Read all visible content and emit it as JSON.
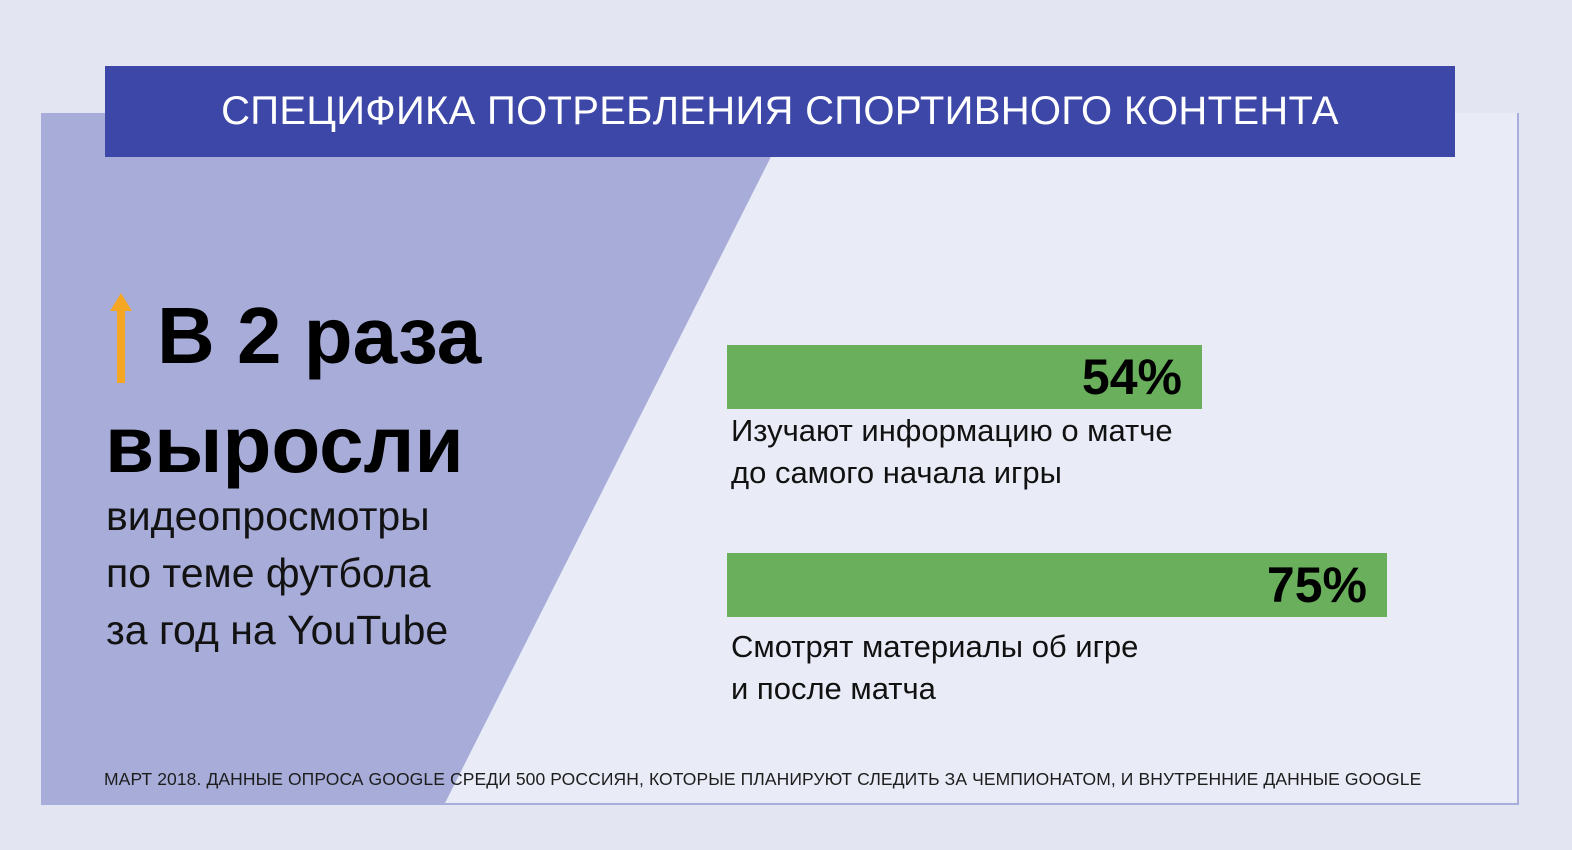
{
  "header": {
    "title": "СПЕЦИФИКА ПОТРЕБЛЕНИЯ СПОРТИВНОГО КОНТЕНТА"
  },
  "highlight": {
    "headline_line1": "В 2 раза",
    "headline_line2": "выросли",
    "body_lines": [
      "видеопросмотры",
      "по теме футбола",
      "за год на YouTube"
    ],
    "arrow_icon": "up-arrow-icon",
    "arrow_color": "#f5a623"
  },
  "chart_data": {
    "type": "bar",
    "orientation": "horizontal",
    "categories": [
      "Изучают информацию о матче до самого начала игры",
      "Смотрят материалы об игре и после матча"
    ],
    "values": [
      54,
      75
    ],
    "value_labels": [
      "54%",
      "75%"
    ],
    "category_lines": [
      [
        "Изучают информацию о матче",
        "до самого начала игры"
      ],
      [
        "Смотрят материалы об игре",
        "и после матча"
      ]
    ],
    "xlim": [
      0,
      100
    ],
    "bar_color": "#6ab05c",
    "grid": false
  },
  "footnote": "МАРТ 2018. ДАННЫЕ ОПРОСА GOOGLE СРЕДИ 500 РОССИЯН, КОТОРЫЕ ПЛАНИРУЮТ СЛЕДИТЬ ЗА ЧЕМПИОНАТОМ, И ВНУТРЕННИЕ ДАННЫЕ GOOGLE",
  "colors": {
    "page_background": "#e3e5f2",
    "card_background": "#e9ecf6",
    "diagonal_panel": "#a7acd9",
    "header_band": "#3c47a8",
    "header_text": "#ffffff"
  }
}
